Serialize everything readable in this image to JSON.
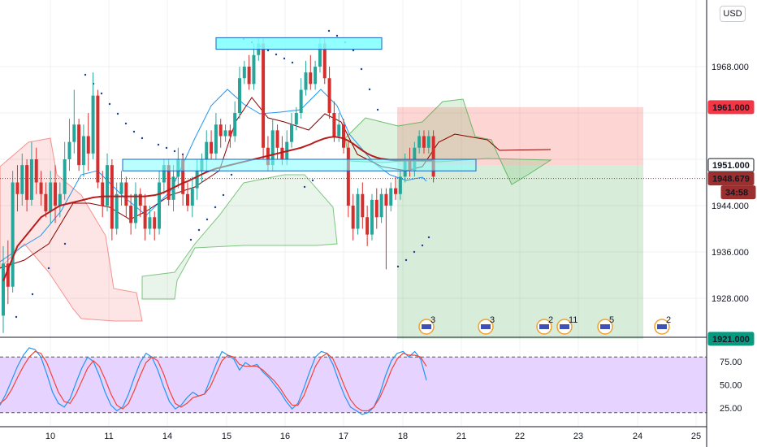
{
  "currency": "USD",
  "colors": {
    "up": "#26a69a",
    "down": "#d32f2f",
    "ma": "#b71c1c",
    "conv": "#2196f3",
    "base": "#8b0000",
    "cloud_green": "#4caf50",
    "cloud_red": "#ef5350",
    "psar": "#1e3f8f",
    "zone_fill": "#7fffff",
    "zone_stroke": "#1565c0",
    "stoch_k": "#2196f3",
    "stoch_d": "#f44336",
    "stoch_bg": "#e6d3ff",
    "tag_red": "#f23645",
    "tag_green": "#089981",
    "tag_dark": "#9c2f2f"
  },
  "chart_data": [
    {
      "type": "candlestick",
      "title": "",
      "ylim": [
        1921,
        1977
      ],
      "x_ticks": [
        "10",
        "11",
        "14",
        "15",
        "16",
        "17",
        "18",
        "21",
        "22",
        "23",
        "24",
        "25"
      ],
      "y_ticks": [
        "1968.000",
        "1944.000",
        "1936.000",
        "1928.000"
      ],
      "candles": [
        [
          1925,
          1934,
          1922,
          1937
        ],
        [
          1934,
          1930,
          1927,
          1938
        ],
        [
          1930,
          1948,
          1929,
          1950
        ],
        [
          1948,
          1946,
          1943,
          1951
        ],
        [
          1946,
          1951,
          1944,
          1953
        ],
        [
          1951,
          1945,
          1943,
          1952
        ],
        [
          1945,
          1952,
          1944,
          1955
        ],
        [
          1952,
          1948,
          1946,
          1954
        ],
        [
          1948,
          1946,
          1944,
          1950
        ],
        [
          1946,
          1943,
          1942,
          1948
        ],
        [
          1943,
          1948,
          1941,
          1950
        ],
        [
          1948,
          1944,
          1941,
          1951
        ],
        [
          1944,
          1946,
          1942,
          1948
        ],
        [
          1946,
          1952,
          1945,
          1955
        ],
        [
          1952,
          1955,
          1950,
          1959
        ],
        [
          1955,
          1958,
          1953,
          1964
        ],
        [
          1958,
          1951,
          1950,
          1959
        ],
        [
          1951,
          1956,
          1949,
          1958
        ],
        [
          1956,
          1953,
          1950,
          1960
        ],
        [
          1953,
          1963,
          1952,
          1967
        ],
        [
          1963,
          1948,
          1947,
          1964
        ],
        [
          1948,
          1944,
          1942,
          1950
        ],
        [
          1944,
          1951,
          1943,
          1953
        ],
        [
          1951,
          1940,
          1938,
          1952
        ],
        [
          1940,
          1946,
          1939,
          1948
        ],
        [
          1946,
          1948,
          1944,
          1950
        ],
        [
          1948,
          1944,
          1942,
          1949
        ],
        [
          1944,
          1941,
          1939,
          1946
        ],
        [
          1941,
          1946,
          1940,
          1948
        ],
        [
          1946,
          1944,
          1942,
          1947
        ],
        [
          1944,
          1940,
          1938,
          1946
        ],
        [
          1940,
          1942,
          1939,
          1944
        ],
        [
          1942,
          1940,
          1938,
          1943
        ],
        [
          1940,
          1948,
          1939,
          1950
        ],
        [
          1948,
          1951,
          1946,
          1952
        ],
        [
          1951,
          1945,
          1944,
          1952
        ],
        [
          1945,
          1949,
          1943,
          1951
        ],
        [
          1949,
          1952,
          1947,
          1954
        ],
        [
          1952,
          1946,
          1944,
          1953
        ],
        [
          1946,
          1944,
          1943,
          1948
        ],
        [
          1944,
          1947,
          1942,
          1949
        ],
        [
          1947,
          1950,
          1945,
          1952
        ],
        [
          1950,
          1952,
          1948,
          1953
        ],
        [
          1952,
          1955,
          1950,
          1957
        ],
        [
          1955,
          1953,
          1952,
          1957
        ],
        [
          1953,
          1958,
          1952,
          1960
        ],
        [
          1958,
          1956,
          1954,
          1959
        ],
        [
          1956,
          1957,
          1955,
          1958
        ],
        [
          1957,
          1956,
          1954,
          1958
        ],
        [
          1956,
          1960,
          1955,
          1962
        ],
        [
          1960,
          1966,
          1959,
          1968
        ],
        [
          1966,
          1968,
          1965,
          1969
        ],
        [
          1968,
          1965,
          1964,
          1970
        ],
        [
          1965,
          1970,
          1964,
          1972
        ],
        [
          1970,
          1972,
          1969,
          1973
        ],
        [
          1972,
          1954,
          1952,
          1973
        ],
        [
          1954,
          1951,
          1950,
          1956
        ],
        [
          1951,
          1957,
          1950,
          1959
        ],
        [
          1957,
          1954,
          1952,
          1958
        ],
        [
          1954,
          1952,
          1951,
          1956
        ],
        [
          1952,
          1955,
          1951,
          1957
        ],
        [
          1955,
          1958,
          1954,
          1960
        ],
        [
          1958,
          1960,
          1957,
          1961
        ],
        [
          1960,
          1964,
          1959,
          1966
        ],
        [
          1964,
          1967,
          1963,
          1969
        ],
        [
          1967,
          1965,
          1964,
          1970
        ],
        [
          1965,
          1968,
          1964,
          1969
        ],
        [
          1968,
          1972,
          1967,
          1973
        ],
        [
          1972,
          1966,
          1965,
          1973
        ],
        [
          1966,
          1960,
          1959,
          1968
        ],
        [
          1960,
          1956,
          1955,
          1962
        ],
        [
          1956,
          1958,
          1955,
          1960
        ],
        [
          1958,
          1954,
          1953,
          1959
        ],
        [
          1954,
          1944,
          1942,
          1955
        ],
        [
          1944,
          1940,
          1938,
          1946
        ],
        [
          1940,
          1946,
          1939,
          1947
        ],
        [
          1946,
          1942,
          1940,
          1948
        ],
        [
          1942,
          1939,
          1937,
          1944
        ],
        [
          1939,
          1945,
          1938,
          1946
        ],
        [
          1945,
          1942,
          1940,
          1947
        ],
        [
          1942,
          1946,
          1941,
          1947
        ],
        [
          1946,
          1944,
          1933,
          1947
        ],
        [
          1944,
          1947,
          1943,
          1948
        ],
        [
          1947,
          1946,
          1945,
          1949
        ],
        [
          1946,
          1949,
          1945,
          1950
        ],
        [
          1949,
          1952,
          1948,
          1953
        ],
        [
          1952,
          1950,
          1949,
          1954
        ],
        [
          1950,
          1954,
          1949,
          1955
        ],
        [
          1954,
          1956,
          1953,
          1957
        ],
        [
          1956,
          1954,
          1953,
          1957
        ],
        [
          1954,
          1956,
          1953,
          1957
        ],
        [
          1956,
          1949,
          1948,
          1957
        ]
      ],
      "moving_average": [
        1931,
        1933,
        1935,
        1937,
        1938,
        1939,
        1940,
        1941,
        1942,
        1942.5,
        1943,
        1943.5,
        1944,
        1944.2,
        1944.4,
        1944.6,
        1944.8,
        1945,
        1945.2,
        1945.4,
        1945.5,
        1945.6,
        1945.6,
        1945.6,
        1945.6,
        1945.6,
        1945.6,
        1945.6,
        1945.6,
        1945.6,
        1945.6,
        1945.7,
        1945.8,
        1946,
        1946.3,
        1946.7,
        1947.1,
        1947.5,
        1947.9,
        1948.2,
        1948.6,
        1949,
        1949.4,
        1949.8,
        1950.1,
        1950.4,
        1950.6,
        1950.8,
        1951,
        1951.2,
        1951.4,
        1951.6,
        1951.8,
        1952,
        1952.2,
        1952.4,
        1952.6,
        1952.8,
        1953,
        1953.2,
        1953.4,
        1953.6,
        1953.8,
        1954,
        1954.3,
        1954.6,
        1955,
        1955.3,
        1955.6,
        1955.8,
        1955.9,
        1955.8,
        1955.6,
        1955.2,
        1954.7,
        1954.1,
        1953.5,
        1953,
        1952.6,
        1952.3,
        1952.1,
        1952,
        1951.9,
        1951.8,
        1951.8,
        1951.8,
        1951.8,
        1951.8,
        1951.8,
        1951.8,
        1951.8,
        1951.8
      ],
      "resistance_zone": [
        1971,
        1973
      ],
      "support_zone": [
        1950,
        1952
      ],
      "position": {
        "entry": 1951.0,
        "stop": 1961.0,
        "target": 1921.0
      },
      "price_tags": [
        {
          "label": "1961.000",
          "value": 1961.0,
          "style": "red"
        },
        {
          "label": "1951.000",
          "value": 1951.0,
          "style": "white"
        },
        {
          "label": "1948.679",
          "value": 1948.679,
          "style": "dark"
        },
        {
          "label": "34:58",
          "value": 1946.3,
          "style": "dark"
        },
        {
          "label": "1921.000",
          "value": 1921.0,
          "style": "green"
        }
      ],
      "event_icons": [
        "3",
        "3",
        "2",
        "11",
        "5",
        "2"
      ]
    },
    {
      "type": "line",
      "title": "",
      "ylim": [
        15,
        90
      ],
      "y_ticks": [
        "75.00",
        "50.00",
        "25.00"
      ],
      "bands": [
        80,
        20
      ],
      "series": [
        {
          "values": [
            28,
            40,
            55,
            70,
            82,
            90,
            88,
            80,
            62,
            42,
            30,
            26,
            35,
            52,
            68,
            80,
            75,
            60,
            42,
            28,
            22,
            26,
            40,
            58,
            74,
            84,
            80,
            66,
            48,
            32,
            24,
            28,
            36,
            42,
            38,
            40,
            56,
            72,
            86,
            82,
            78,
            66,
            74,
            70,
            72,
            64,
            58,
            50,
            42,
            32,
            24,
            30,
            46,
            64,
            80,
            86,
            84,
            72,
            54,
            38,
            26,
            22,
            18,
            20,
            26,
            40,
            60,
            76,
            84,
            86,
            80,
            86,
            78,
            55
          ]
        },
        {
          "values": [
            30,
            35,
            45,
            58,
            70,
            80,
            86,
            84,
            74,
            58,
            42,
            32,
            30,
            40,
            54,
            68,
            76,
            70,
            56,
            40,
            28,
            24,
            30,
            44,
            60,
            74,
            80,
            76,
            62,
            44,
            30,
            26,
            30,
            36,
            38,
            40,
            48,
            62,
            76,
            82,
            80,
            72,
            70,
            70,
            70,
            66,
            60,
            54,
            46,
            36,
            28,
            28,
            38,
            54,
            70,
            80,
            84,
            78,
            64,
            48,
            34,
            26,
            22,
            22,
            26,
            36,
            50,
            66,
            78,
            84,
            82,
            82,
            80,
            70
          ]
        }
      ]
    }
  ]
}
